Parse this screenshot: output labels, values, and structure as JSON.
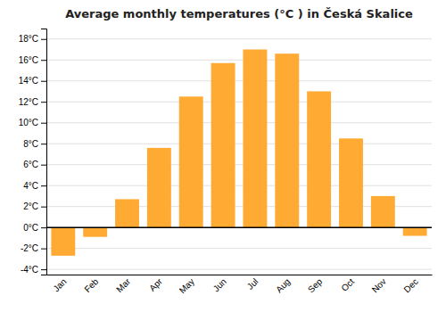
{
  "chart_data": {
    "type": "bar",
    "title": "Average monthly temperatures (°C ) in Česká Skalice",
    "categories": [
      "Jan",
      "Feb",
      "Mar",
      "Apr",
      "May",
      "Jun",
      "Jul",
      "Aug",
      "Sep",
      "Oct",
      "Nov",
      "Dec"
    ],
    "values": [
      -2.7,
      -0.9,
      2.7,
      7.6,
      12.5,
      15.7,
      17.0,
      16.6,
      13.0,
      8.5,
      3.0,
      -0.8
    ],
    "color": "#FFAA33",
    "ylim": [
      -4.5,
      19
    ],
    "yticks": [
      {
        "value": -4,
        "label": "-4°C"
      },
      {
        "value": -2,
        "label": "-2°C"
      },
      {
        "value": 0,
        "label": "0°C"
      },
      {
        "value": 2,
        "label": "2°C"
      },
      {
        "value": 4,
        "label": "4°C"
      },
      {
        "value": 6,
        "label": "6°C"
      },
      {
        "value": 8,
        "label": "8°C"
      },
      {
        "value": 10,
        "label": "10°C"
      },
      {
        "value": 12,
        "label": "12°C"
      },
      {
        "value": 14,
        "label": "14°C"
      },
      {
        "value": 16,
        "label": "16°C"
      },
      {
        "value": 18,
        "label": "18°C"
      }
    ],
    "grid": true
  }
}
